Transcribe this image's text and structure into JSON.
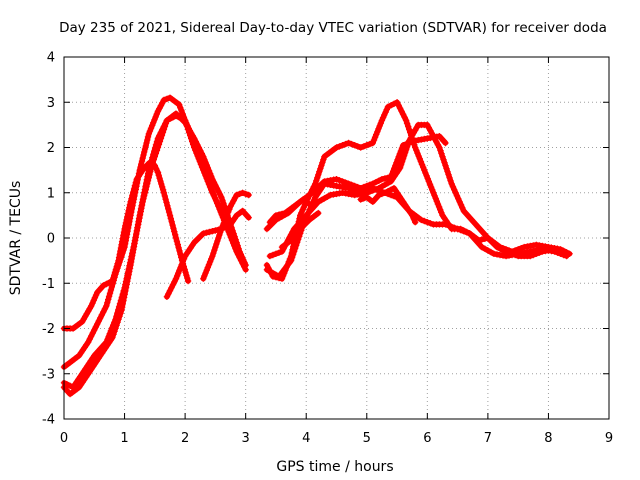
{
  "chart_data": {
    "type": "line",
    "title": "Day 235 of 2021, Sidereal Day-to-day VTEC variation (SDTVAR) for receiver doda",
    "xlabel": "GPS time / hours",
    "ylabel": "SDTVAR / TECUs",
    "xlim": [
      0,
      9
    ],
    "ylim": [
      -4,
      4
    ],
    "xticks": [
      "0",
      "1",
      "2",
      "3",
      "4",
      "5",
      "6",
      "7",
      "8",
      "9"
    ],
    "yticks": [
      "-4",
      "-3",
      "-2",
      "-1",
      "0",
      "1",
      "2",
      "3",
      "4"
    ],
    "grid": true,
    "marker": "plus",
    "color": "#ff0000",
    "series": [
      {
        "name": "arc-1",
        "x": [
          0.0,
          0.15,
          0.3,
          0.45,
          0.55,
          0.65,
          0.8,
          0.9,
          1.0,
          1.1,
          1.2,
          1.3,
          1.4,
          1.5,
          1.55
        ],
        "y": [
          -2.0,
          -2.0,
          -1.85,
          -1.5,
          -1.2,
          -1.05,
          -0.95,
          -0.5,
          0.2,
          0.8,
          1.3,
          1.5,
          1.65,
          1.6,
          1.45
        ]
      },
      {
        "name": "arc-2",
        "x": [
          1.55,
          1.65,
          1.75,
          1.85,
          1.95,
          2.05
        ],
        "y": [
          1.45,
          1.0,
          0.5,
          0.0,
          -0.5,
          -0.95
        ]
      },
      {
        "name": "arc-3",
        "x": [
          0.0,
          0.1,
          0.25,
          0.4,
          0.55,
          0.7,
          0.85,
          1.0,
          1.1,
          1.25,
          1.4,
          1.55,
          1.65,
          1.75,
          1.9,
          2.0,
          2.15,
          2.3,
          2.45,
          2.6
        ],
        "y": [
          -2.85,
          -2.75,
          -2.6,
          -2.3,
          -1.9,
          -1.5,
          -0.8,
          -0.2,
          0.5,
          1.5,
          2.3,
          2.8,
          3.05,
          3.1,
          2.95,
          2.6,
          2.0,
          1.5,
          1.0,
          0.6
        ]
      },
      {
        "name": "arc-4",
        "x": [
          0.0,
          0.15,
          0.3,
          0.5,
          0.7,
          0.85,
          1.0,
          1.15,
          1.3,
          1.45,
          1.6,
          1.7,
          1.85,
          2.0,
          2.15,
          2.3,
          2.45,
          2.6,
          2.7,
          2.8,
          2.9,
          3.0
        ],
        "y": [
          -3.2,
          -3.3,
          -3.0,
          -2.6,
          -2.3,
          -1.8,
          -1.1,
          -0.2,
          0.8,
          1.6,
          2.2,
          2.6,
          2.75,
          2.55,
          2.2,
          1.8,
          1.3,
          0.9,
          0.5,
          0.1,
          -0.3,
          -0.6
        ]
      },
      {
        "name": "arc-5",
        "x": [
          0.0,
          0.1,
          0.25,
          0.45,
          0.6,
          0.8,
          0.95,
          1.1,
          1.25,
          1.4,
          1.55,
          1.7,
          1.85,
          2.0,
          2.1,
          2.25,
          2.4,
          2.55,
          2.7,
          2.85,
          3.0
        ],
        "y": [
          -3.3,
          -3.45,
          -3.3,
          -2.9,
          -2.6,
          -2.2,
          -1.6,
          -0.6,
          0.5,
          1.5,
          2.2,
          2.6,
          2.7,
          2.6,
          2.3,
          1.8,
          1.2,
          0.7,
          0.2,
          -0.3,
          -0.7
        ]
      },
      {
        "name": "arc-6",
        "x": [
          1.7,
          1.85,
          2.0,
          2.15,
          2.3,
          2.45,
          2.6,
          2.75,
          2.85,
          2.95,
          3.05
        ],
        "y": [
          -1.3,
          -0.9,
          -0.4,
          -0.1,
          0.1,
          0.15,
          0.2,
          0.3,
          0.5,
          0.6,
          0.45
        ]
      },
      {
        "name": "arc-7",
        "x": [
          2.3,
          2.45,
          2.6,
          2.75,
          2.85,
          2.95,
          3.05
        ],
        "y": [
          -0.9,
          -0.4,
          0.2,
          0.7,
          0.95,
          1.0,
          0.95
        ]
      },
      {
        "name": "arc-8",
        "x": [
          3.35,
          3.5,
          3.7,
          3.9,
          4.1,
          4.3,
          4.5,
          4.7,
          4.9,
          5.1,
          5.25,
          5.4,
          5.6,
          5.8,
          6.0,
          6.2,
          6.3
        ],
        "y": [
          0.2,
          0.4,
          0.55,
          0.8,
          1.0,
          1.25,
          1.3,
          1.2,
          1.1,
          1.2,
          1.3,
          1.35,
          2.05,
          2.15,
          2.2,
          2.25,
          2.1
        ]
      },
      {
        "name": "arc-9",
        "x": [
          3.35,
          3.45,
          3.6,
          3.75,
          3.9,
          4.0,
          4.15,
          4.3,
          4.5,
          4.7,
          4.9,
          5.1,
          5.25,
          5.35,
          5.5,
          5.65,
          5.8,
          5.95,
          6.1,
          6.25,
          6.4,
          6.55,
          6.7,
          6.85,
          7.0,
          7.15,
          7.3,
          7.5,
          7.7,
          7.9,
          8.1,
          8.3
        ],
        "y": [
          -0.6,
          -0.85,
          -0.9,
          -0.4,
          0.5,
          0.8,
          1.2,
          1.8,
          2.0,
          2.1,
          2.0,
          2.1,
          2.6,
          2.9,
          3.0,
          2.6,
          2.0,
          1.5,
          1.0,
          0.5,
          0.2,
          0.2,
          0.1,
          -0.05,
          0.0,
          -0.2,
          -0.3,
          -0.4,
          -0.4,
          -0.3,
          -0.25,
          -0.35
        ]
      },
      {
        "name": "arc-10",
        "x": [
          3.35,
          3.55,
          3.75,
          3.95,
          4.15,
          4.3,
          4.5,
          4.7,
          4.9,
          5.1,
          5.3,
          5.5,
          5.7,
          5.9,
          6.1,
          6.3,
          6.5,
          6.7,
          6.9,
          7.1,
          7.3,
          7.5,
          7.7,
          7.9,
          8.1,
          8.3
        ],
        "y": [
          -0.7,
          -0.85,
          -0.5,
          0.3,
          0.9,
          1.2,
          1.15,
          1.1,
          1.0,
          1.1,
          1.0,
          0.9,
          0.6,
          0.4,
          0.3,
          0.3,
          0.2,
          0.1,
          -0.2,
          -0.35,
          -0.4,
          -0.35,
          -0.3,
          -0.25,
          -0.3,
          -0.4
        ]
      },
      {
        "name": "arc-11",
        "x": [
          3.4,
          3.6,
          3.8,
          4.0,
          4.2,
          4.4,
          4.6,
          4.8,
          5.0,
          5.2,
          5.4,
          5.55,
          5.7,
          5.85,
          6.0,
          6.2,
          6.4,
          6.6,
          6.8,
          7.0,
          7.2,
          7.4,
          7.6,
          7.8,
          8.0,
          8.2,
          8.35
        ],
        "y": [
          -0.4,
          -0.3,
          0.2,
          0.5,
          0.8,
          0.95,
          1.0,
          0.95,
          1.0,
          1.1,
          1.25,
          1.55,
          2.15,
          2.5,
          2.5,
          2.0,
          1.2,
          0.6,
          0.3,
          0.0,
          -0.2,
          -0.3,
          -0.2,
          -0.15,
          -0.2,
          -0.25,
          -0.35
        ]
      },
      {
        "name": "arc-12",
        "x": [
          3.4,
          3.5,
          3.65,
          3.8,
          3.95,
          4.1
        ],
        "y": [
          0.35,
          0.5,
          0.55,
          0.7,
          0.85,
          0.7
        ]
      },
      {
        "name": "arc-13",
        "x": [
          3.6,
          3.75,
          3.9,
          4.05,
          4.2
        ],
        "y": [
          -0.2,
          -0.05,
          0.2,
          0.4,
          0.55
        ]
      },
      {
        "name": "arc-14",
        "x": [
          4.9,
          5.0,
          5.1,
          5.2,
          5.3,
          5.45,
          5.6,
          5.75,
          5.8
        ],
        "y": [
          0.85,
          0.9,
          0.8,
          0.95,
          1.0,
          1.1,
          0.8,
          0.5,
          0.35
        ]
      }
    ]
  }
}
